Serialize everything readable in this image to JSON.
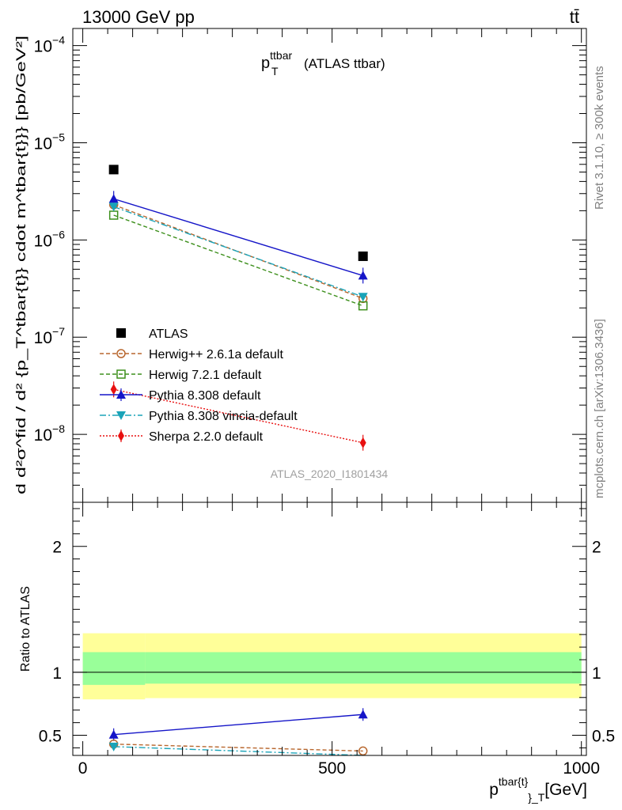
{
  "header": {
    "left": "13000 GeV pp",
    "right": "tt̄"
  },
  "side_text": {
    "rivet": "Rivet 3.1.10, ≥ 300k events",
    "mcplots": "mcplots.cern.ch [arXiv:1306.3436]"
  },
  "chart_data": [
    {
      "type": "line",
      "panel": "main",
      "title": {
        "main": "p",
        "sup": "ttbar",
        "sub": "T",
        "suffix": "(ATLAS ttbar)"
      },
      "watermark": "ATLAS_2020_I1801434",
      "ylabel": "d d²σ^fid / d² {p_T^tbar{t}} cdot m^tbar{t}}} [pb/GeV²]",
      "yscale": "log",
      "ylim": [
        2e-09,
        0.00015
      ],
      "xlim": [
        -20,
        1010
      ],
      "ytick_labels": [
        {
          "value": 0.0001,
          "base": "10",
          "exp": "−4"
        },
        {
          "value": 1e-05,
          "base": "10",
          "exp": "−5"
        },
        {
          "value": 1e-06,
          "base": "10",
          "exp": "−6"
        },
        {
          "value": 1e-07,
          "base": "10",
          "exp": "−7"
        },
        {
          "value": 1e-08,
          "base": "10",
          "exp": "−8"
        }
      ],
      "series": [
        {
          "name": "ATLAS",
          "color": "#000000",
          "marker": "square",
          "line": "none",
          "x": [
            62,
            562
          ],
          "y": [
            5.3e-06,
            6.8e-07
          ]
        },
        {
          "name": "Herwig++ 2.6.1a default",
          "color": "#b8672e",
          "marker": "circle-open",
          "line": "dashed",
          "x": [
            62,
            562
          ],
          "y": [
            2.3e-06,
            2.5e-07
          ]
        },
        {
          "name": "Herwig 7.2.1 default",
          "color": "#3d8f1c",
          "marker": "square-open",
          "line": "dashed",
          "x": [
            62,
            562
          ],
          "y": [
            1.8e-06,
            2.1e-07
          ]
        },
        {
          "name": "Pythia 8.308 default",
          "color": "#1515c8",
          "marker": "triangle-up",
          "line": "solid",
          "x": [
            62,
            562
          ],
          "y": [
            2.65e-06,
            4.3e-07
          ]
        },
        {
          "name": "Pythia 8.308 vincia-default",
          "color": "#1aa3b8",
          "marker": "triangle-down",
          "line": "dashdot",
          "x": [
            62,
            562
          ],
          "y": [
            2.2e-06,
            2.6e-07
          ]
        },
        {
          "name": "Sherpa 2.2.0 default",
          "color": "#e81010",
          "marker": "diamond",
          "line": "dotted",
          "x": [
            62,
            562
          ],
          "y": [
            2.9e-08,
            8.2e-09
          ]
        }
      ]
    },
    {
      "type": "line",
      "panel": "ratio",
      "ylabel": "Ratio to ATLAS",
      "xlabel": {
        "main": "p",
        "sup": "tbar{t}",
        "sub": "}_T",
        "suffix": "[GeV]"
      },
      "ylim": [
        0.34,
        2.35
      ],
      "xlim": [
        -20,
        1010
      ],
      "xtick_labels": [
        {
          "value": 0,
          "label": "0"
        },
        {
          "value": 500,
          "label": "500"
        },
        {
          "value": 1000,
          "label": "1000"
        }
      ],
      "ytick_labels": [
        {
          "value": 0.5,
          "label": "0.5"
        },
        {
          "value": 1,
          "label": "1"
        },
        {
          "value": 2,
          "label": "2"
        }
      ],
      "bands": [
        {
          "name": "total-uncertainty",
          "color": "#ffff99",
          "segments": [
            {
              "x": [
                0,
                125
              ],
              "y": [
                0.785,
                1.31
              ]
            },
            {
              "x": [
                125,
                1000
              ],
              "y": [
                0.795,
                1.31
              ]
            }
          ]
        },
        {
          "name": "stat-uncertainty",
          "color": "#99ff99",
          "segments": [
            {
              "x": [
                0,
                125
              ],
              "y": [
                0.9,
                1.16
              ]
            },
            {
              "x": [
                125,
                1000
              ],
              "y": [
                0.91,
                1.16
              ]
            }
          ]
        }
      ],
      "series": [
        {
          "name": "Pythia 8.308 default",
          "color": "#1515c8",
          "marker": "triangle-up",
          "line": "solid",
          "x": [
            62,
            562
          ],
          "y": [
            0.505,
            0.665
          ]
        },
        {
          "name": "Herwig++ 2.6.1a default",
          "color": "#b8672e",
          "marker": "circle-open",
          "line": "dashed",
          "x": [
            62,
            562
          ],
          "y": [
            0.43,
            0.375
          ]
        },
        {
          "name": "Pythia 8.308 vincia-default",
          "color": "#1aa3b8",
          "marker": "triangle-down",
          "line": "dashdot",
          "x": [
            62,
            562
          ],
          "y": [
            0.41,
            0.34
          ]
        }
      ]
    }
  ]
}
